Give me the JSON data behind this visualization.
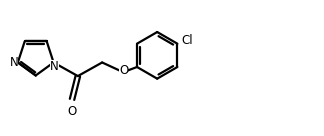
{
  "bg_color": "#ffffff",
  "line_color": "#000000",
  "text_color": "#000000",
  "line_width": 1.6,
  "font_size": 8.5,
  "figsize": [
    3.24,
    1.36
  ],
  "dpi": 100,
  "xlim": [
    0,
    10
  ],
  "ylim": [
    0,
    4.2
  ]
}
